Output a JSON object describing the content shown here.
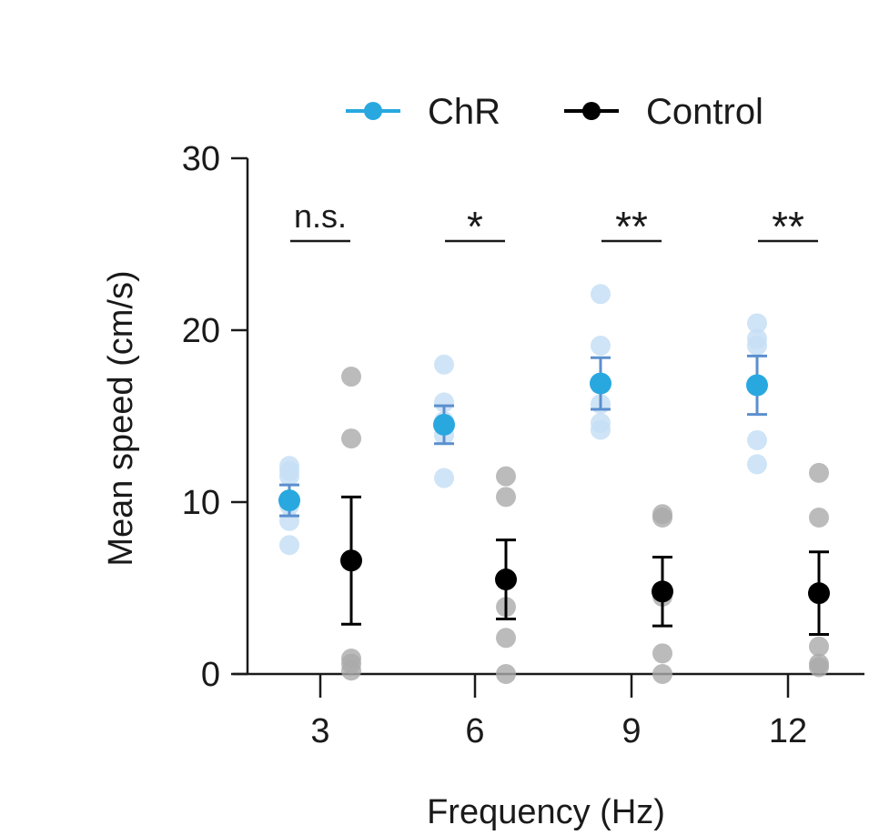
{
  "chart_data": {
    "type": "scatter",
    "xlabel": "Frequency (Hz)",
    "ylabel": "Mean speed (cm/s)",
    "ylim": [
      0,
      30
    ],
    "yticks": [
      "0",
      "10",
      "20",
      "30"
    ],
    "categories": [
      "3",
      "6",
      "9",
      "12"
    ],
    "legend_position": "top",
    "series": [
      {
        "name": "ChR",
        "color": "#29a8e0",
        "point_color": "#c7dff5",
        "error_color": "#5b8fce",
        "means": [
          10.1,
          14.5,
          16.9,
          16.8
        ],
        "sem": [
          0.9,
          1.1,
          1.5,
          1.7
        ],
        "points": [
          [
            12.1,
            11.8,
            11.5,
            9.8,
            8.9,
            7.5
          ],
          [
            18.0,
            15.8,
            14.7,
            13.9,
            11.4
          ],
          [
            22.1,
            19.1,
            15.7,
            14.6,
            14.2
          ],
          [
            20.4,
            19.5,
            19.1,
            13.6,
            12.2
          ]
        ]
      },
      {
        "name": "Control",
        "color": "#000000",
        "point_color": "#aaaaaa",
        "error_color": "#000000",
        "means": [
          6.6,
          5.5,
          4.8,
          4.7
        ],
        "sem": [
          3.7,
          2.3,
          2.0,
          2.4
        ],
        "points": [
          [
            17.3,
            13.7,
            0.9,
            0.6,
            0.2
          ],
          [
            11.5,
            10.3,
            3.9,
            2.1,
            0.0
          ],
          [
            9.3,
            9.1,
            4.5,
            1.2,
            0.0
          ],
          [
            11.7,
            9.1,
            1.6,
            0.6,
            0.4
          ]
        ]
      }
    ],
    "significance": [
      "n.s.",
      "*",
      "**",
      "**"
    ]
  }
}
